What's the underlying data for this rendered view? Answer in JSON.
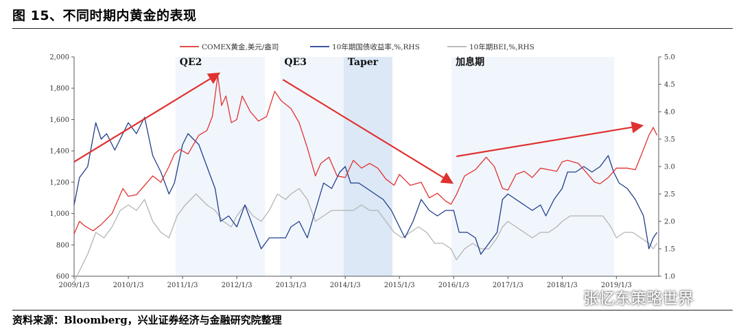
{
  "figure": {
    "title": "图 15、不同时期内黄金的表现",
    "source": "资料来源：Bloomberg，兴业证券经济与金融研究院整理",
    "watermark": "张忆东策略世界"
  },
  "chart_data": {
    "type": "line",
    "x_ticks": [
      "2009/1/3",
      "2010/1/3",
      "2011/1/3",
      "2012/1/3",
      "2013/1/3",
      "2014/1/3",
      "2015/1/3",
      "2016/1/3",
      "2017/1/3",
      "2018/1/3",
      "2019/1/3"
    ],
    "ylim_left": [
      600,
      2000
    ],
    "yticks_left": [
      "600",
      "800",
      "1,000",
      "1,200",
      "1,400",
      "1,600",
      "1,800",
      "2,000"
    ],
    "ylim_right": [
      1.0,
      5.0
    ],
    "yticks_right": [
      "1.0",
      "1.5",
      "2.0",
      "2.5",
      "3.0",
      "3.5",
      "4.0",
      "4.5",
      "5.0"
    ],
    "legend_position": "top",
    "periods": [
      {
        "label": "QE2",
        "start": 2010.87,
        "end": 2012.52
      },
      {
        "label": "QE3",
        "start": 2012.8,
        "end": 2013.97
      },
      {
        "label": "Taper",
        "start": 2013.97,
        "end": 2014.87
      },
      {
        "label": "加息期",
        "start": 2015.96,
        "end": 2018.96
      }
    ],
    "series": [
      {
        "name": "COMEX黄金,美元/盎司",
        "axis": "left",
        "color": "#e03131",
        "points": [
          [
            2009.0,
            870
          ],
          [
            2009.1,
            950
          ],
          [
            2009.2,
            920
          ],
          [
            2009.35,
            890
          ],
          [
            2009.5,
            930
          ],
          [
            2009.7,
            1000
          ],
          [
            2009.9,
            1160
          ],
          [
            2010.0,
            1110
          ],
          [
            2010.15,
            1120
          ],
          [
            2010.3,
            1180
          ],
          [
            2010.45,
            1240
          ],
          [
            2010.6,
            1200
          ],
          [
            2010.75,
            1300
          ],
          [
            2010.85,
            1380
          ],
          [
            2010.95,
            1410
          ],
          [
            2011.1,
            1380
          ],
          [
            2011.3,
            1500
          ],
          [
            2011.45,
            1530
          ],
          [
            2011.55,
            1620
          ],
          [
            2011.65,
            1880
          ],
          [
            2011.72,
            1690
          ],
          [
            2011.8,
            1750
          ],
          [
            2011.9,
            1580
          ],
          [
            2012.0,
            1600
          ],
          [
            2012.1,
            1750
          ],
          [
            2012.25,
            1650
          ],
          [
            2012.4,
            1590
          ],
          [
            2012.55,
            1620
          ],
          [
            2012.7,
            1780
          ],
          [
            2012.82,
            1720
          ],
          [
            2013.0,
            1670
          ],
          [
            2013.15,
            1580
          ],
          [
            2013.3,
            1420
          ],
          [
            2013.45,
            1240
          ],
          [
            2013.55,
            1320
          ],
          [
            2013.7,
            1360
          ],
          [
            2013.85,
            1240
          ],
          [
            2014.0,
            1230
          ],
          [
            2014.15,
            1340
          ],
          [
            2014.3,
            1290
          ],
          [
            2014.45,
            1320
          ],
          [
            2014.6,
            1290
          ],
          [
            2014.75,
            1220
          ],
          [
            2014.9,
            1180
          ],
          [
            2015.0,
            1250
          ],
          [
            2015.2,
            1180
          ],
          [
            2015.4,
            1200
          ],
          [
            2015.55,
            1100
          ],
          [
            2015.7,
            1130
          ],
          [
            2015.85,
            1080
          ],
          [
            2015.95,
            1060
          ],
          [
            2016.05,
            1120
          ],
          [
            2016.2,
            1240
          ],
          [
            2016.4,
            1280
          ],
          [
            2016.6,
            1360
          ],
          [
            2016.75,
            1300
          ],
          [
            2016.9,
            1160
          ],
          [
            2017.0,
            1150
          ],
          [
            2017.15,
            1250
          ],
          [
            2017.3,
            1270
          ],
          [
            2017.45,
            1230
          ],
          [
            2017.6,
            1290
          ],
          [
            2017.75,
            1280
          ],
          [
            2017.9,
            1270
          ],
          [
            2018.0,
            1330
          ],
          [
            2018.1,
            1340
          ],
          [
            2018.3,
            1320
          ],
          [
            2018.45,
            1260
          ],
          [
            2018.6,
            1200
          ],
          [
            2018.7,
            1190
          ],
          [
            2018.85,
            1230
          ],
          [
            2019.0,
            1290
          ],
          [
            2019.2,
            1290
          ],
          [
            2019.35,
            1280
          ],
          [
            2019.5,
            1410
          ],
          [
            2019.6,
            1500
          ],
          [
            2019.68,
            1550
          ],
          [
            2019.75,
            1500
          ]
        ]
      },
      {
        "name": "10年期国债收益率,%,RHS",
        "axis": "right",
        "color": "#1f3d8a",
        "points": [
          [
            2009.0,
            2.3
          ],
          [
            2009.1,
            2.8
          ],
          [
            2009.25,
            3.0
          ],
          [
            2009.4,
            3.8
          ],
          [
            2009.5,
            3.5
          ],
          [
            2009.6,
            3.6
          ],
          [
            2009.75,
            3.3
          ],
          [
            2009.9,
            3.6
          ],
          [
            2010.0,
            3.8
          ],
          [
            2010.15,
            3.6
          ],
          [
            2010.3,
            3.9
          ],
          [
            2010.45,
            3.2
          ],
          [
            2010.6,
            2.9
          ],
          [
            2010.75,
            2.5
          ],
          [
            2010.85,
            2.7
          ],
          [
            2011.0,
            3.4
          ],
          [
            2011.1,
            3.6
          ],
          [
            2011.3,
            3.4
          ],
          [
            2011.45,
            3.0
          ],
          [
            2011.6,
            2.6
          ],
          [
            2011.7,
            2.0
          ],
          [
            2011.85,
            2.1
          ],
          [
            2012.0,
            1.9
          ],
          [
            2012.15,
            2.3
          ],
          [
            2012.3,
            1.9
          ],
          [
            2012.45,
            1.5
          ],
          [
            2012.6,
            1.7
          ],
          [
            2012.75,
            1.7
          ],
          [
            2012.9,
            1.7
          ],
          [
            2013.0,
            1.9
          ],
          [
            2013.15,
            2.0
          ],
          [
            2013.3,
            1.7
          ],
          [
            2013.45,
            2.2
          ],
          [
            2013.6,
            2.7
          ],
          [
            2013.75,
            2.6
          ],
          [
            2013.9,
            2.9
          ],
          [
            2014.0,
            3.0
          ],
          [
            2014.1,
            2.7
          ],
          [
            2014.25,
            2.7
          ],
          [
            2014.4,
            2.6
          ],
          [
            2014.55,
            2.5
          ],
          [
            2014.7,
            2.4
          ],
          [
            2014.85,
            2.2
          ],
          [
            2015.0,
            1.9
          ],
          [
            2015.1,
            1.7
          ],
          [
            2015.25,
            2.0
          ],
          [
            2015.4,
            2.4
          ],
          [
            2015.55,
            2.2
          ],
          [
            2015.7,
            2.1
          ],
          [
            2015.85,
            2.2
          ],
          [
            2016.0,
            2.2
          ],
          [
            2016.1,
            1.8
          ],
          [
            2016.25,
            1.8
          ],
          [
            2016.4,
            1.7
          ],
          [
            2016.5,
            1.4
          ],
          [
            2016.65,
            1.6
          ],
          [
            2016.8,
            1.8
          ],
          [
            2016.9,
            2.4
          ],
          [
            2017.0,
            2.5
          ],
          [
            2017.15,
            2.4
          ],
          [
            2017.3,
            2.3
          ],
          [
            2017.45,
            2.2
          ],
          [
            2017.6,
            2.3
          ],
          [
            2017.7,
            2.1
          ],
          [
            2017.85,
            2.4
          ],
          [
            2018.0,
            2.6
          ],
          [
            2018.1,
            2.9
          ],
          [
            2018.25,
            2.9
          ],
          [
            2018.4,
            3.0
          ],
          [
            2018.55,
            2.9
          ],
          [
            2018.7,
            3.0
          ],
          [
            2018.85,
            3.2
          ],
          [
            2018.95,
            2.9
          ],
          [
            2019.05,
            2.7
          ],
          [
            2019.2,
            2.6
          ],
          [
            2019.35,
            2.4
          ],
          [
            2019.5,
            2.1
          ],
          [
            2019.6,
            1.5
          ],
          [
            2019.68,
            1.7
          ],
          [
            2019.75,
            1.8
          ]
        ]
      },
      {
        "name": "10年期BEI,%,RHS",
        "axis": "right",
        "color": "#b3b3b3",
        "points": [
          [
            2009.0,
            0.9
          ],
          [
            2009.1,
            1.1
          ],
          [
            2009.25,
            1.4
          ],
          [
            2009.4,
            1.8
          ],
          [
            2009.55,
            1.7
          ],
          [
            2009.7,
            1.9
          ],
          [
            2009.85,
            2.2
          ],
          [
            2010.0,
            2.3
          ],
          [
            2010.15,
            2.2
          ],
          [
            2010.3,
            2.4
          ],
          [
            2010.45,
            2.0
          ],
          [
            2010.6,
            1.8
          ],
          [
            2010.75,
            1.7
          ],
          [
            2010.9,
            2.1
          ],
          [
            2011.05,
            2.3
          ],
          [
            2011.25,
            2.5
          ],
          [
            2011.45,
            2.3
          ],
          [
            2011.6,
            2.2
          ],
          [
            2011.75,
            2.0
          ],
          [
            2011.9,
            1.9
          ],
          [
            2012.0,
            2.1
          ],
          [
            2012.15,
            2.3
          ],
          [
            2012.3,
            2.1
          ],
          [
            2012.45,
            2.0
          ],
          [
            2012.6,
            2.2
          ],
          [
            2012.75,
            2.5
          ],
          [
            2012.9,
            2.4
          ],
          [
            2013.0,
            2.5
          ],
          [
            2013.15,
            2.6
          ],
          [
            2013.3,
            2.4
          ],
          [
            2013.45,
            2.0
          ],
          [
            2013.6,
            2.1
          ],
          [
            2013.75,
            2.2
          ],
          [
            2013.9,
            2.2
          ],
          [
            2014.0,
            2.2
          ],
          [
            2014.15,
            2.2
          ],
          [
            2014.3,
            2.3
          ],
          [
            2014.45,
            2.2
          ],
          [
            2014.6,
            2.2
          ],
          [
            2014.75,
            2.0
          ],
          [
            2014.9,
            1.8
          ],
          [
            2015.05,
            1.7
          ],
          [
            2015.2,
            1.8
          ],
          [
            2015.35,
            1.9
          ],
          [
            2015.5,
            1.8
          ],
          [
            2015.65,
            1.6
          ],
          [
            2015.8,
            1.6
          ],
          [
            2015.95,
            1.5
          ],
          [
            2016.05,
            1.3
          ],
          [
            2016.2,
            1.5
          ],
          [
            2016.35,
            1.6
          ],
          [
            2016.5,
            1.5
          ],
          [
            2016.65,
            1.5
          ],
          [
            2016.8,
            1.7
          ],
          [
            2016.9,
            1.9
          ],
          [
            2017.0,
            2.0
          ],
          [
            2017.15,
            1.9
          ],
          [
            2017.3,
            1.8
          ],
          [
            2017.45,
            1.7
          ],
          [
            2017.6,
            1.8
          ],
          [
            2017.75,
            1.8
          ],
          [
            2017.9,
            1.9
          ],
          [
            2018.0,
            2.0
          ],
          [
            2018.15,
            2.1
          ],
          [
            2018.3,
            2.1
          ],
          [
            2018.45,
            2.1
          ],
          [
            2018.6,
            2.1
          ],
          [
            2018.75,
            2.1
          ],
          [
            2018.9,
            1.9
          ],
          [
            2019.0,
            1.7
          ],
          [
            2019.15,
            1.8
          ],
          [
            2019.3,
            1.8
          ],
          [
            2019.45,
            1.7
          ],
          [
            2019.6,
            1.6
          ],
          [
            2019.68,
            1.5
          ],
          [
            2019.75,
            1.6
          ]
        ]
      }
    ],
    "arrows": [
      {
        "from": [
          2009.0,
          1330
        ],
        "to": [
          2011.65,
          1890
        ]
      },
      {
        "from": [
          2012.85,
          1855
        ],
        "to": [
          2015.95,
          1200
        ]
      },
      {
        "from": [
          2016.05,
          1365
        ],
        "to": [
          2019.45,
          1560
        ]
      }
    ]
  }
}
